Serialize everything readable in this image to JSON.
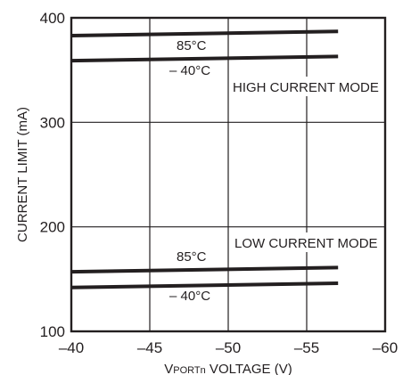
{
  "chart_data": {
    "type": "line",
    "xlabel_main": "V",
    "xlabel_sub": "PORTn",
    "xlabel_rest": " VOLTAGE (V)",
    "ylabel": "CURRENT LIMIT (mA)",
    "xlim": [
      -40,
      -60
    ],
    "ylim": [
      100,
      400
    ],
    "x_ticks": [
      -40,
      -45,
      -50,
      -55,
      -60
    ],
    "x_tick_labels": [
      "–40",
      "–45",
      "–50",
      "–55",
      "–60"
    ],
    "y_ticks": [
      100,
      200,
      300,
      400
    ],
    "y_tick_labels": [
      "100",
      "200",
      "300",
      "400"
    ],
    "grid": true,
    "series": [
      {
        "name": "85°C",
        "mode": "HIGH CURRENT MODE",
        "x": [
          -40,
          -57
        ],
        "y": [
          383,
          387
        ]
      },
      {
        "name": "–40°C",
        "mode": "HIGH CURRENT MODE",
        "x": [
          -40,
          -57
        ],
        "y": [
          359,
          363
        ]
      },
      {
        "name": "85°C",
        "mode": "LOW CURRENT MODE",
        "x": [
          -40,
          -57
        ],
        "y": [
          157,
          161
        ]
      },
      {
        "name": "–40°C",
        "mode": "LOW CURRENT MODE",
        "x": [
          -40,
          -57
        ],
        "y": [
          142,
          146
        ]
      }
    ],
    "annotations": {
      "high_85": "85°C",
      "high_m40": "– 40°C",
      "high_mode": "HIGH CURRENT MODE",
      "low_mode": "LOW CURRENT MODE",
      "low_85": "85°C",
      "low_m40": "– 40°C"
    }
  }
}
